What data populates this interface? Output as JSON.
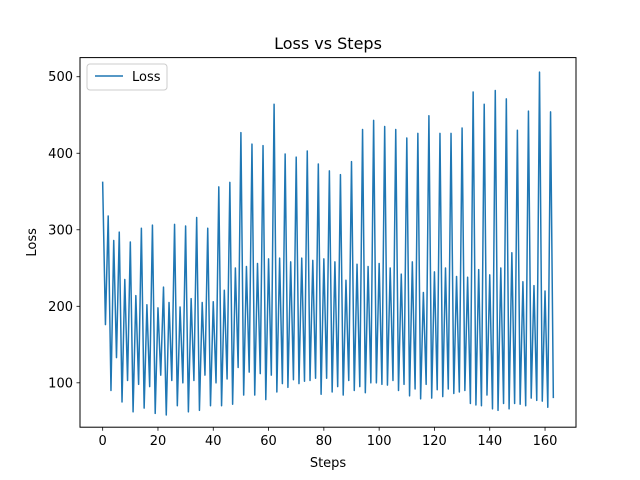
{
  "chart_data": {
    "type": "line",
    "title": "Loss vs Steps",
    "xlabel": "Steps",
    "ylabel": "Loss",
    "xlim": [
      -8.2,
      171.2
    ],
    "ylim": [
      42,
      525
    ],
    "xticks": [
      0,
      20,
      40,
      60,
      80,
      100,
      120,
      140,
      160
    ],
    "yticks": [
      100,
      200,
      300,
      400,
      500
    ],
    "grid": false,
    "legend": {
      "position": "top-left",
      "entries": [
        "Loss"
      ]
    },
    "series": [
      {
        "name": "Loss",
        "color": "#1f77b4",
        "x": [
          0,
          1,
          2,
          3,
          4,
          5,
          6,
          7,
          8,
          9,
          10,
          11,
          12,
          13,
          14,
          15,
          16,
          17,
          18,
          19,
          20,
          21,
          22,
          23,
          24,
          25,
          26,
          27,
          28,
          29,
          30,
          31,
          32,
          33,
          34,
          35,
          36,
          37,
          38,
          39,
          40,
          41,
          42,
          43,
          44,
          45,
          46,
          47,
          48,
          49,
          50,
          51,
          52,
          53,
          54,
          55,
          56,
          57,
          58,
          59,
          60,
          61,
          62,
          63,
          64,
          65,
          66,
          67,
          68,
          69,
          70,
          71,
          72,
          73,
          74,
          75,
          76,
          77,
          78,
          79,
          80,
          81,
          82,
          83,
          84,
          85,
          86,
          87,
          88,
          89,
          90,
          91,
          92,
          93,
          94,
          95,
          96,
          97,
          98,
          99,
          100,
          101,
          102,
          103,
          104,
          105,
          106,
          107,
          108,
          109,
          110,
          111,
          112,
          113,
          114,
          115,
          116,
          117,
          118,
          119,
          120,
          121,
          122,
          123,
          124,
          125,
          126,
          127,
          128,
          129,
          130,
          131,
          132,
          133,
          134,
          135,
          136,
          137,
          138,
          139,
          140,
          141,
          142,
          143,
          144,
          145,
          146,
          147,
          148,
          149,
          150,
          151,
          152,
          153,
          154,
          155,
          156,
          157,
          158,
          159,
          160,
          161,
          162,
          163
        ],
        "values": [
          362,
          176,
          318,
          90,
          286,
          133,
          297,
          75,
          235,
          103,
          284,
          62,
          214,
          98,
          302,
          67,
          202,
          95,
          306,
          60,
          198,
          110,
          225,
          58,
          205,
          103,
          307,
          70,
          199,
          100,
          305,
          62,
          210,
          103,
          316,
          64,
          205,
          110,
          302,
          70,
          206,
          100,
          356,
          70,
          221,
          105,
          362,
          72,
          250,
          120,
          427,
          84,
          252,
          114,
          412,
          84,
          256,
          112,
          410,
          78,
          262,
          110,
          464,
          88,
          263,
          99,
          399,
          94,
          258,
          104,
          395,
          99,
          263,
          102,
          403,
          103,
          260,
          106,
          386,
          85,
          262,
          106,
          377,
          88,
          258,
          95,
          372,
          84,
          234,
          103,
          389,
          90,
          255,
          95,
          431,
          87,
          252,
          100,
          443,
          100,
          256,
          98,
          435,
          97,
          250,
          103,
          431,
          90,
          242,
          98,
          420,
          83,
          258,
          92,
          426,
          79,
          218,
          98,
          449,
          80,
          245,
          91,
          426,
          82,
          250,
          92,
          426,
          86,
          239,
          88,
          433,
          90,
          238,
          73,
          480,
          71,
          248,
          70,
          464,
          84,
          241,
          66,
          482,
          64,
          250,
          73,
          471,
          66,
          270,
          73,
          430,
          72,
          232,
          70,
          455,
          80,
          227,
          77,
          506,
          76,
          220,
          68,
          454,
          81
        ]
      }
    ]
  }
}
